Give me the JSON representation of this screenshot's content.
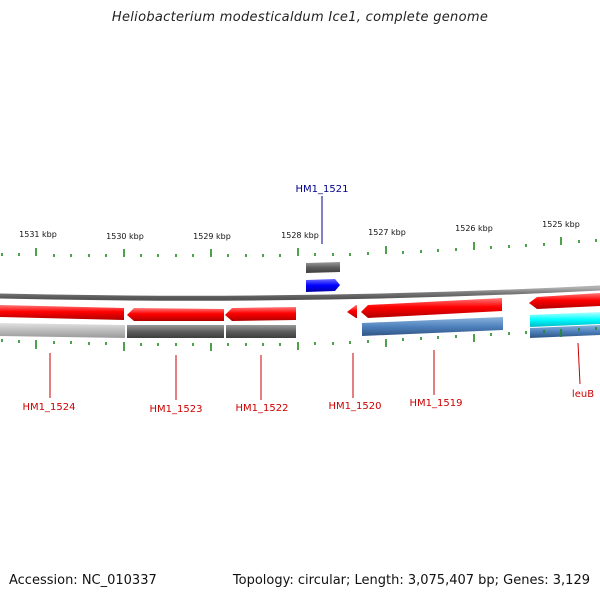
{
  "title": "Heliobacterium modesticaldum Ice1, complete genome",
  "scale_labels": [
    "1531 kbp",
    "1530 kbp",
    "1529 kbp",
    "1528 kbp",
    "1527 kbp",
    "1526 kbp",
    "1525 kbp"
  ],
  "gene_labels": {
    "hm1_1521": "HM1_1521",
    "hm1_1524": "HM1_1524",
    "hm1_1523": "HM1_1523",
    "hm1_1522": "HM1_1522",
    "hm1_1520": "HM1_1520",
    "hm1_1519": "HM1_1519",
    "leub": "leuB"
  },
  "colors": {
    "forward_label": "#00008b",
    "reverse_label": "#cc0000",
    "tick": "#228b22",
    "gene_red": "#ff0000",
    "gene_blue": "#0000ff",
    "gene_cyan": "#00ffff",
    "bar_gray": "#666666",
    "bar_light": "#bbbbbb",
    "bar_steel": "#4f81bd",
    "backbone": "#777777"
  },
  "footer": {
    "accession": "Accession: NC_010337",
    "stats": "Topology: circular; Length: 3,075,407 bp; Genes: 3,129"
  }
}
